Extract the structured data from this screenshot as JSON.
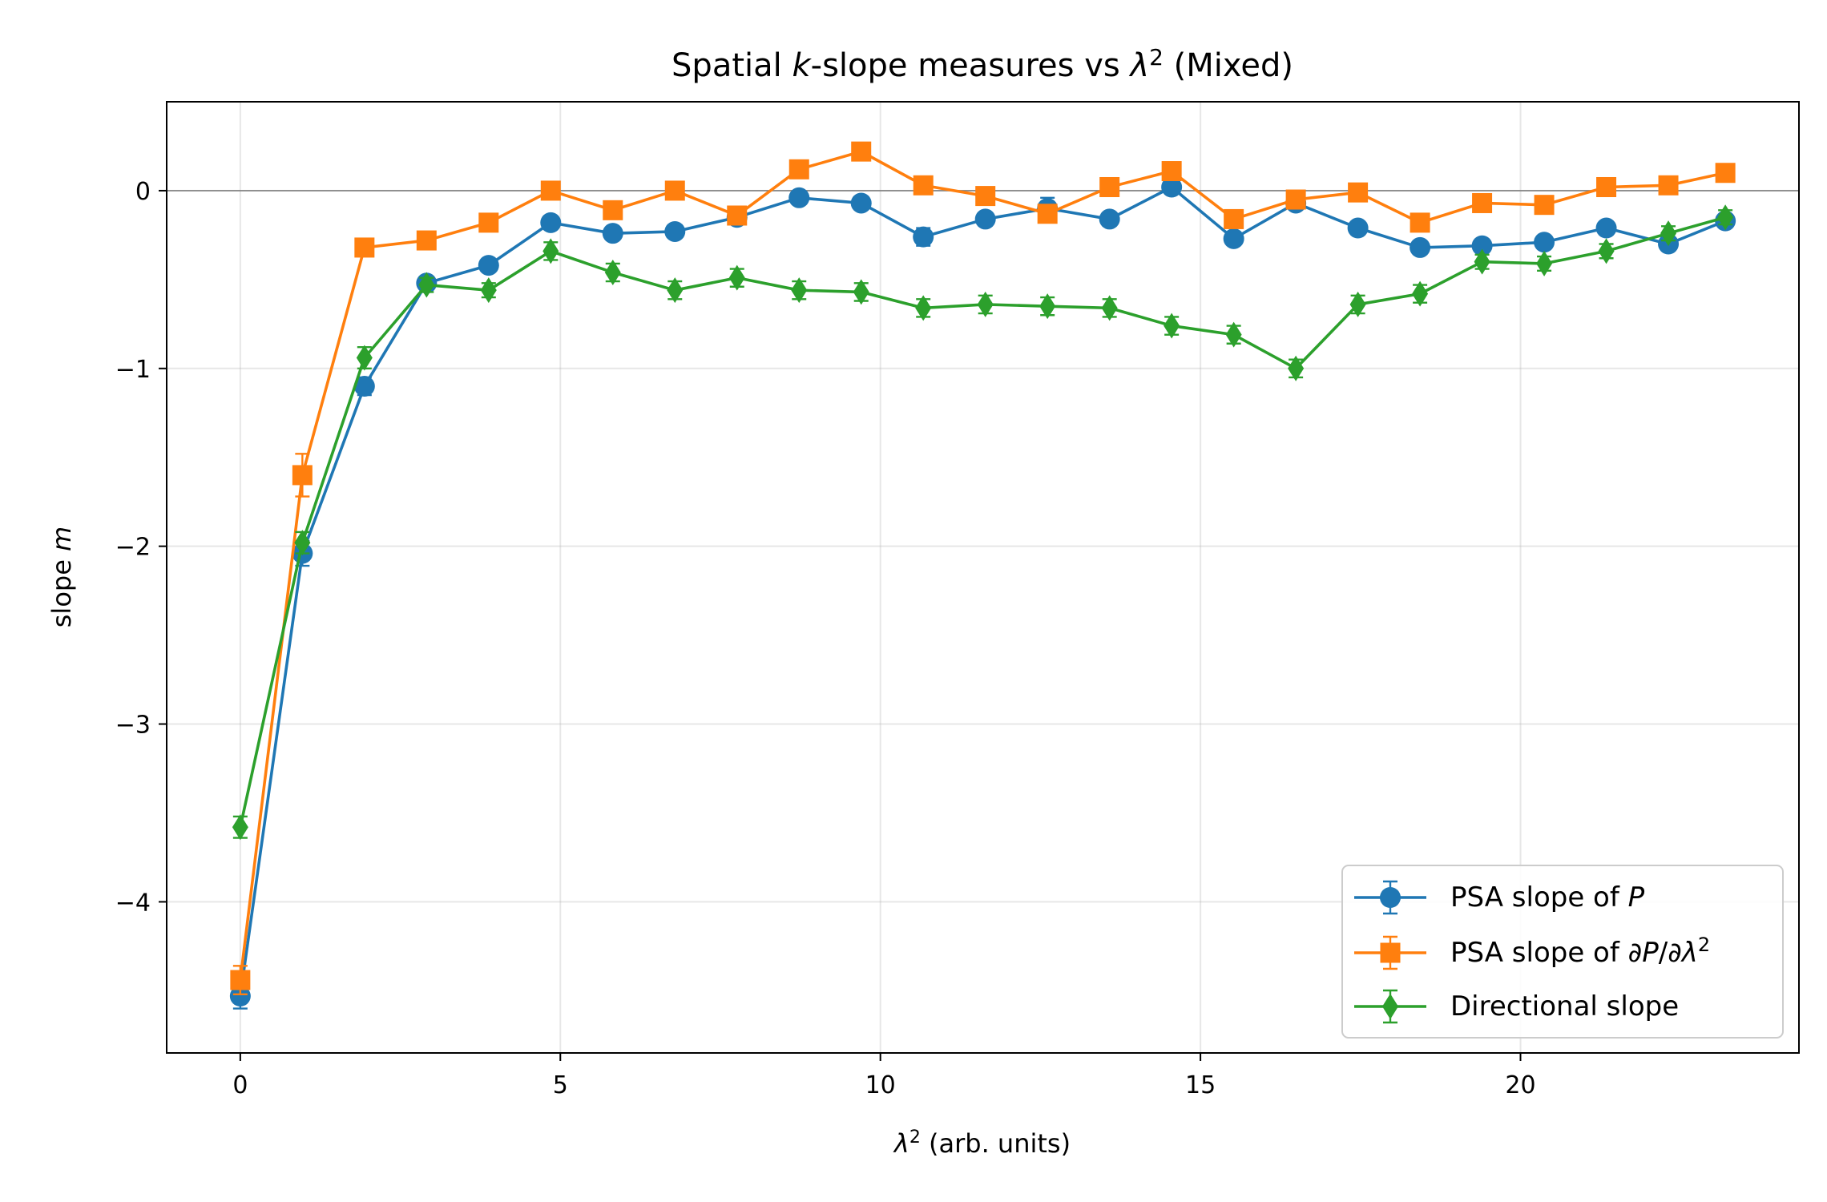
{
  "chart_data": {
    "type": "line",
    "title": "Spatial k-slope measures vs λ² (Mixed)",
    "xlabel": "λ² (arb. units)",
    "ylabel": "slope m",
    "xlim": [
      -1.15,
      24.35
    ],
    "ylim": [
      -4.85,
      0.5
    ],
    "xticks": [
      0,
      5,
      10,
      15,
      20
    ],
    "yticks": [
      0,
      -1,
      -2,
      -3,
      -4
    ],
    "xtick_labels": [
      "0",
      "5",
      "10",
      "15",
      "20"
    ],
    "ytick_labels": [
      "0",
      "−1",
      "−2",
      "−3",
      "−4"
    ],
    "grid": true,
    "reference_line": 0,
    "legend_position": "lower-right",
    "x": [
      0,
      0.97,
      1.94,
      2.91,
      3.88,
      4.85,
      5.82,
      6.79,
      7.76,
      8.73,
      9.7,
      10.67,
      11.64,
      12.61,
      13.58,
      14.55,
      15.52,
      16.49,
      17.46,
      18.43,
      19.4,
      20.37,
      21.34,
      22.31,
      23.2
    ],
    "series": [
      {
        "name": "PSA slope of P",
        "color": "#1f77b4",
        "marker": "circle",
        "values": [
          -4.53,
          -2.04,
          -1.1,
          -0.52,
          -0.42,
          -0.18,
          -0.24,
          -0.23,
          -0.15,
          -0.04,
          -0.07,
          -0.26,
          -0.16,
          -0.1,
          -0.16,
          0.02,
          -0.27,
          -0.07,
          -0.21,
          -0.32,
          -0.31,
          -0.29,
          -0.21,
          -0.3,
          -0.17
        ],
        "errors": [
          0.07,
          0.07,
          0.05,
          0.03,
          0.03,
          0.03,
          0.03,
          0.03,
          0.03,
          0.03,
          0.03,
          0.05,
          0.03,
          0.06,
          0.03,
          0.03,
          0.03,
          0.03,
          0.03,
          0.03,
          0.03,
          0.03,
          0.03,
          0.03,
          0.03
        ]
      },
      {
        "name": "PSA slope of ∂P/∂λ²",
        "color": "#ff7f0e",
        "marker": "square",
        "values": [
          -4.44,
          -1.6,
          -0.32,
          -0.28,
          -0.18,
          0.0,
          -0.11,
          0.0,
          -0.14,
          0.12,
          0.22,
          0.03,
          -0.03,
          -0.13,
          0.02,
          0.11,
          -0.16,
          -0.05,
          -0.01,
          -0.18,
          -0.07,
          -0.08,
          0.02,
          0.03,
          0.1
        ],
        "errors": [
          0.08,
          0.12,
          0.03,
          0.03,
          0.03,
          0.03,
          0.03,
          0.03,
          0.03,
          0.03,
          0.03,
          0.03,
          0.03,
          0.03,
          0.03,
          0.03,
          0.03,
          0.03,
          0.03,
          0.03,
          0.03,
          0.03,
          0.03,
          0.03,
          0.03
        ]
      },
      {
        "name": "Directional slope",
        "color": "#2ca02c",
        "marker": "diamond",
        "values": [
          -3.58,
          -1.98,
          -0.94,
          -0.53,
          -0.56,
          -0.34,
          -0.46,
          -0.56,
          -0.49,
          -0.56,
          -0.57,
          -0.66,
          -0.64,
          -0.65,
          -0.66,
          -0.76,
          -0.81,
          -1.0,
          -0.64,
          -0.58,
          -0.4,
          -0.41,
          -0.34,
          -0.24,
          -0.15
        ],
        "errors": [
          0.06,
          0.06,
          0.06,
          0.04,
          0.04,
          0.05,
          0.05,
          0.05,
          0.05,
          0.05,
          0.05,
          0.05,
          0.05,
          0.05,
          0.05,
          0.05,
          0.05,
          0.05,
          0.05,
          0.05,
          0.04,
          0.04,
          0.04,
          0.04,
          0.04
        ]
      }
    ]
  }
}
